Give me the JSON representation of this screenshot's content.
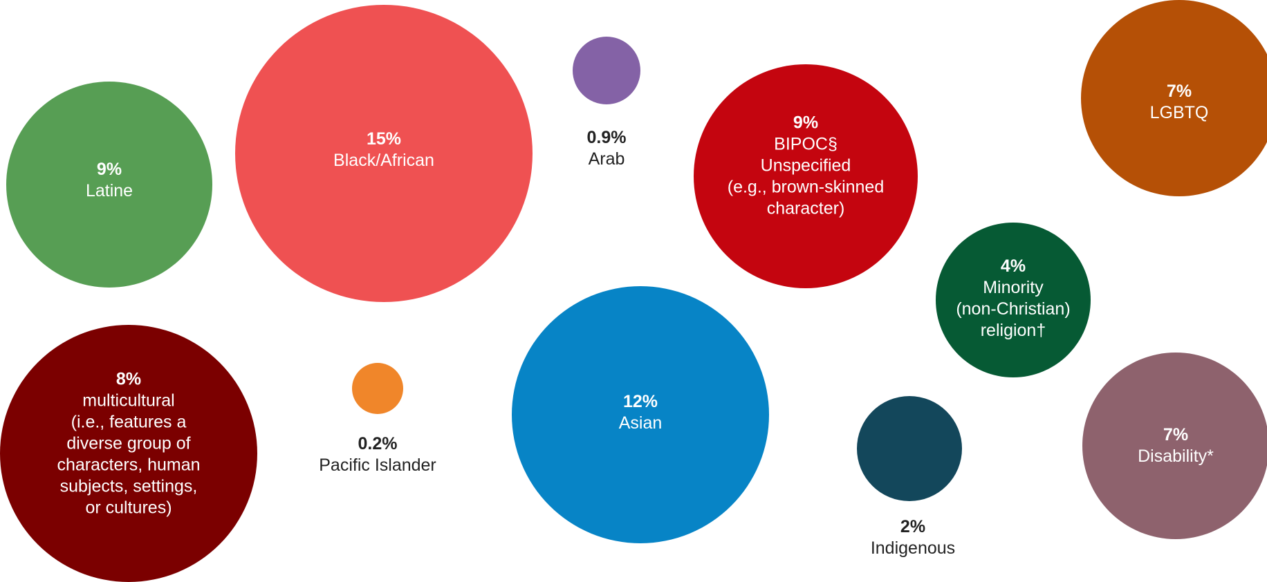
{
  "chart_data": {
    "type": "bubble",
    "title": "",
    "bubbles": [
      {
        "id": "latine",
        "value_label": "9%",
        "value": 9,
        "label": "Latine",
        "color": "#579e54",
        "label_position": "inside"
      },
      {
        "id": "black-african",
        "value_label": "15%",
        "value": 15,
        "label": "Black/African",
        "color": "#ef5152",
        "label_position": "inside"
      },
      {
        "id": "arab",
        "value_label": "0.9%",
        "value": 0.9,
        "label": "Arab",
        "color": "#8462a6",
        "label_position": "below"
      },
      {
        "id": "bipoc",
        "value_label": "9%",
        "value": 9,
        "label": "BIPOC§\nUnspecified\n(e.g., brown-skinned\ncharacter)",
        "color": "#c4050f",
        "label_position": "inside"
      },
      {
        "id": "lgbtq",
        "value_label": "7%",
        "value": 7,
        "label": "LGBTQ",
        "color": "#b55006",
        "label_position": "inside"
      },
      {
        "id": "minority-religion",
        "value_label": "4%",
        "value": 4,
        "label": "Minority\n(non-Christian)\nreligion†",
        "color": "#065a34",
        "label_position": "inside"
      },
      {
        "id": "multicultural",
        "value_label": "8%",
        "value": 8,
        "label": "multicultural\n(i.e., features a\ndiverse group of\ncharacters, human\nsubjects, settings,\nor cultures)",
        "color": "#7b0000",
        "label_position": "inside"
      },
      {
        "id": "pacific-islander",
        "value_label": "0.2%",
        "value": 0.2,
        "label": "Pacific Islander",
        "color": "#f0862a",
        "label_position": "below"
      },
      {
        "id": "asian",
        "value_label": "12%",
        "value": 12,
        "label": "Asian",
        "color": "#0784c6",
        "label_position": "inside"
      },
      {
        "id": "indigenous",
        "value_label": "2%",
        "value": 2,
        "label": "Indigenous",
        "color": "#13475b",
        "label_position": "below"
      },
      {
        "id": "disability",
        "value_label": "7%",
        "value": 7,
        "label": "Disability*",
        "color": "#8e626d",
        "label_position": "inside"
      }
    ]
  }
}
